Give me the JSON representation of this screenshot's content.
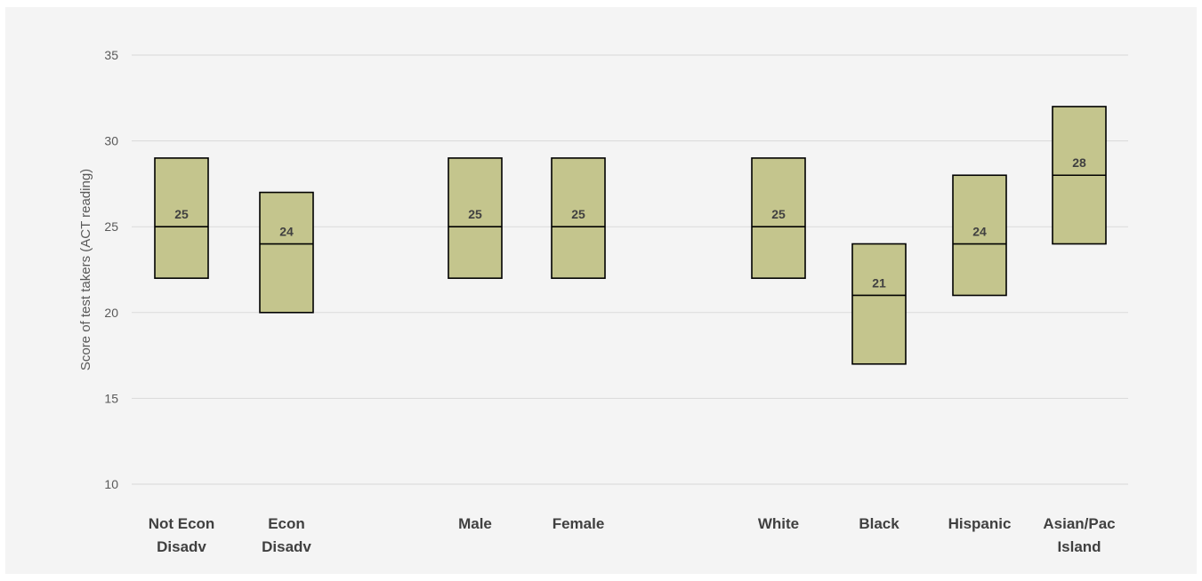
{
  "chart_data": {
    "type": "boxplot",
    "title": "",
    "xlabel": "",
    "ylabel": "Score of test takers (ACT reading)",
    "ylim": [
      10,
      35
    ],
    "yticks": [
      10,
      15,
      20,
      25,
      30,
      35
    ],
    "grid": true,
    "legend": "none",
    "box_fill": "#c4c58d",
    "box_stroke": "#000000",
    "groups": [
      {
        "label_lines": [
          "Not Econ",
          "Disadv"
        ],
        "low": 22,
        "median": 25,
        "high": 29,
        "median_label": "25"
      },
      {
        "label_lines": [
          "Econ",
          "Disadv"
        ],
        "low": 20,
        "median": 24,
        "high": 27,
        "median_label": "24"
      },
      {
        "label_lines": [
          "Male"
        ],
        "low": 22,
        "median": 25,
        "high": 29,
        "median_label": "25"
      },
      {
        "label_lines": [
          "Female"
        ],
        "low": 22,
        "median": 25,
        "high": 29,
        "median_label": "25"
      },
      {
        "label_lines": [
          "White"
        ],
        "low": 22,
        "median": 25,
        "high": 29,
        "median_label": "25"
      },
      {
        "label_lines": [
          "Black"
        ],
        "low": 17,
        "median": 21,
        "high": 24,
        "median_label": "21"
      },
      {
        "label_lines": [
          "Hispanic"
        ],
        "low": 21,
        "median": 24,
        "high": 28,
        "median_label": "24"
      },
      {
        "label_lines": [
          "Asian/Pac",
          "Island"
        ],
        "low": 24,
        "median": 28,
        "high": 32,
        "median_label": "28"
      }
    ]
  }
}
